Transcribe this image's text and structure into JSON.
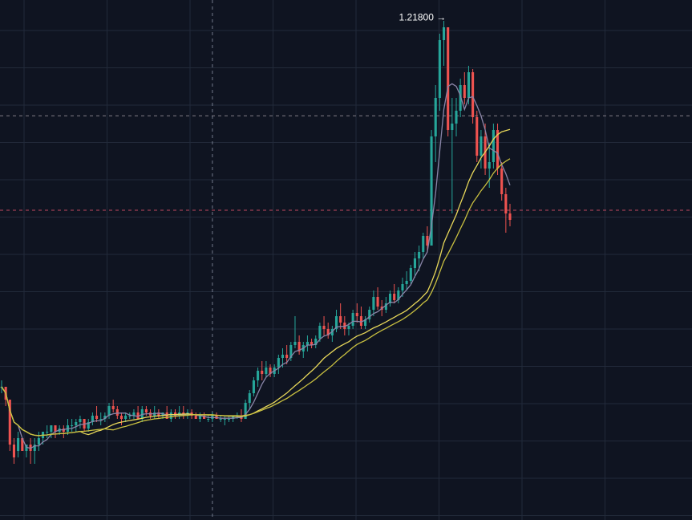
{
  "colors": {
    "background": "#0f1421",
    "grid": "#222a3a",
    "up": "#26a69a",
    "down": "#ef5350",
    "ma_fast": "#8a85a8",
    "ma_slow_1": "#e8d85a",
    "ma_slow_2": "#c9c040",
    "crosshair": "#8b93a5",
    "price_line_grey": "#b0a8b0",
    "price_line_red": "#e0506a"
  },
  "annotations": {
    "high_label": "1.21800 →"
  },
  "chart_data": {
    "type": "candlestick",
    "grid": true,
    "ylim": [
      0.46,
      1.235
    ],
    "high": 1.218,
    "reference_lines": [
      1.072,
      0.925
    ],
    "crosshair_candle_index": 51,
    "candles": [
      [
        0.65,
        0.66,
        0.64,
        0.65
      ],
      [
        0.65,
        0.65,
        0.62,
        0.63
      ],
      [
        0.63,
        0.63,
        0.55,
        0.56
      ],
      [
        0.56,
        0.57,
        0.53,
        0.54
      ],
      [
        0.55,
        0.58,
        0.54,
        0.57
      ],
      [
        0.57,
        0.57,
        0.55,
        0.55
      ],
      [
        0.55,
        0.56,
        0.54,
        0.56
      ],
      [
        0.56,
        0.57,
        0.53,
        0.55
      ],
      [
        0.55,
        0.57,
        0.53,
        0.56
      ],
      [
        0.56,
        0.58,
        0.55,
        0.57
      ],
      [
        0.57,
        0.58,
        0.56,
        0.58
      ],
      [
        0.58,
        0.59,
        0.57,
        0.58
      ],
      [
        0.58,
        0.59,
        0.57,
        0.59
      ],
      [
        0.59,
        0.59,
        0.57,
        0.58
      ],
      [
        0.58,
        0.59,
        0.575,
        0.585
      ],
      [
        0.585,
        0.59,
        0.57,
        0.58
      ],
      [
        0.58,
        0.6,
        0.575,
        0.59
      ],
      [
        0.59,
        0.6,
        0.58,
        0.59
      ],
      [
        0.59,
        0.6,
        0.58,
        0.595
      ],
      [
        0.595,
        0.605,
        0.585,
        0.6
      ],
      [
        0.6,
        0.6,
        0.58,
        0.585
      ],
      [
        0.585,
        0.6,
        0.58,
        0.595
      ],
      [
        0.595,
        0.61,
        0.59,
        0.605
      ],
      [
        0.605,
        0.62,
        0.595,
        0.6
      ],
      [
        0.6,
        0.61,
        0.59,
        0.6
      ],
      [
        0.6,
        0.61,
        0.595,
        0.605
      ],
      [
        0.605,
        0.625,
        0.6,
        0.62
      ],
      [
        0.62,
        0.63,
        0.61,
        0.615
      ],
      [
        0.615,
        0.62,
        0.6,
        0.605
      ],
      [
        0.605,
        0.61,
        0.59,
        0.6
      ],
      [
        0.6,
        0.61,
        0.595,
        0.605
      ],
      [
        0.605,
        0.61,
        0.6,
        0.605
      ],
      [
        0.605,
        0.615,
        0.6,
        0.61
      ],
      [
        0.61,
        0.62,
        0.6,
        0.6
      ],
      [
        0.6,
        0.62,
        0.595,
        0.615
      ],
      [
        0.615,
        0.62,
        0.605,
        0.61
      ],
      [
        0.61,
        0.615,
        0.6,
        0.605
      ],
      [
        0.605,
        0.62,
        0.6,
        0.61
      ],
      [
        0.61,
        0.615,
        0.6,
        0.605
      ],
      [
        0.605,
        0.61,
        0.6,
        0.61
      ],
      [
        0.61,
        0.62,
        0.6,
        0.6
      ],
      [
        0.6,
        0.615,
        0.595,
        0.61
      ],
      [
        0.61,
        0.615,
        0.6,
        0.605
      ],
      [
        0.605,
        0.62,
        0.6,
        0.61
      ],
      [
        0.61,
        0.62,
        0.6,
        0.605
      ],
      [
        0.605,
        0.615,
        0.6,
        0.61
      ],
      [
        0.61,
        0.615,
        0.6,
        0.605
      ],
      [
        0.605,
        0.61,
        0.6,
        0.6
      ],
      [
        0.6,
        0.61,
        0.595,
        0.605
      ],
      [
        0.605,
        0.61,
        0.6,
        0.6
      ],
      [
        0.6,
        0.605,
        0.595,
        0.6
      ],
      [
        0.6,
        0.61,
        0.595,
        0.605
      ],
      [
        0.605,
        0.61,
        0.6,
        0.6
      ],
      [
        0.6,
        0.605,
        0.595,
        0.6
      ],
      [
        0.6,
        0.605,
        0.59,
        0.6
      ],
      [
        0.6,
        0.605,
        0.595,
        0.6
      ],
      [
        0.6,
        0.605,
        0.595,
        0.605
      ],
      [
        0.605,
        0.61,
        0.6,
        0.605
      ],
      [
        0.605,
        0.615,
        0.595,
        0.6
      ],
      [
        0.6,
        0.63,
        0.6,
        0.625
      ],
      [
        0.625,
        0.645,
        0.615,
        0.64
      ],
      [
        0.64,
        0.665,
        0.635,
        0.66
      ],
      [
        0.66,
        0.68,
        0.65,
        0.675
      ],
      [
        0.675,
        0.69,
        0.66,
        0.67
      ],
      [
        0.67,
        0.69,
        0.665,
        0.68
      ],
      [
        0.68,
        0.685,
        0.665,
        0.67
      ],
      [
        0.67,
        0.685,
        0.665,
        0.68
      ],
      [
        0.68,
        0.7,
        0.67,
        0.695
      ],
      [
        0.695,
        0.71,
        0.68,
        0.7
      ],
      [
        0.7,
        0.715,
        0.685,
        0.695
      ],
      [
        0.695,
        0.72,
        0.69,
        0.715
      ],
      [
        0.715,
        0.76,
        0.71,
        0.72
      ],
      [
        0.72,
        0.73,
        0.7,
        0.705
      ],
      [
        0.705,
        0.72,
        0.695,
        0.715
      ],
      [
        0.715,
        0.73,
        0.705,
        0.72
      ],
      [
        0.72,
        0.725,
        0.71,
        0.715
      ],
      [
        0.715,
        0.73,
        0.71,
        0.725
      ],
      [
        0.725,
        0.75,
        0.72,
        0.745
      ],
      [
        0.745,
        0.76,
        0.73,
        0.74
      ],
      [
        0.74,
        0.75,
        0.725,
        0.73
      ],
      [
        0.73,
        0.745,
        0.72,
        0.74
      ],
      [
        0.74,
        0.77,
        0.735,
        0.76
      ],
      [
        0.76,
        0.78,
        0.74,
        0.75
      ],
      [
        0.75,
        0.76,
        0.73,
        0.74
      ],
      [
        0.74,
        0.75,
        0.73,
        0.745
      ],
      [
        0.745,
        0.77,
        0.74,
        0.765
      ],
      [
        0.765,
        0.78,
        0.75,
        0.76
      ],
      [
        0.76,
        0.775,
        0.74,
        0.745
      ],
      [
        0.745,
        0.76,
        0.74,
        0.755
      ],
      [
        0.755,
        0.775,
        0.75,
        0.77
      ],
      [
        0.77,
        0.8,
        0.76,
        0.79
      ],
      [
        0.79,
        0.805,
        0.77,
        0.775
      ],
      [
        0.775,
        0.785,
        0.76,
        0.77
      ],
      [
        0.77,
        0.79,
        0.765,
        0.78
      ],
      [
        0.78,
        0.8,
        0.775,
        0.795
      ],
      [
        0.795,
        0.81,
        0.78,
        0.785
      ],
      [
        0.785,
        0.805,
        0.78,
        0.8
      ],
      [
        0.8,
        0.82,
        0.79,
        0.81
      ],
      [
        0.81,
        0.83,
        0.8,
        0.815
      ],
      [
        0.815,
        0.84,
        0.81,
        0.835
      ],
      [
        0.835,
        0.86,
        0.82,
        0.85
      ],
      [
        0.85,
        0.87,
        0.83,
        0.86
      ],
      [
        0.86,
        0.89,
        0.85,
        0.885
      ],
      [
        0.885,
        0.9,
        0.86,
        0.87
      ],
      [
        0.87,
        1.05,
        0.87,
        1.04
      ],
      [
        1.04,
        1.12,
        1.0,
        1.1
      ],
      [
        1.1,
        1.2,
        1.08,
        1.19
      ],
      [
        1.19,
        1.22,
        1.15,
        1.21
      ],
      [
        1.21,
        1.205,
        1.04,
        1.05
      ],
      [
        1.05,
        1.1,
        0.92,
        1.06
      ],
      [
        1.06,
        1.1,
        1.04,
        1.08
      ],
      [
        1.08,
        1.13,
        1.07,
        1.12
      ],
      [
        1.12,
        1.14,
        1.09,
        1.1
      ],
      [
        1.1,
        1.15,
        1.09,
        1.14
      ],
      [
        1.14,
        1.145,
        1.06,
        1.07
      ],
      [
        1.07,
        1.08,
        1.0,
        1.01
      ],
      [
        1.01,
        1.05,
        0.99,
        1.04
      ],
      [
        1.04,
        1.06,
        0.98,
        0.99
      ],
      [
        0.99,
        1.03,
        0.96,
        1.0
      ],
      [
        1.0,
        1.06,
        0.99,
        1.05
      ],
      [
        1.05,
        1.06,
        0.98,
        0.99
      ],
      [
        0.99,
        1.0,
        0.94,
        0.95
      ],
      [
        0.95,
        0.96,
        0.89,
        0.92
      ],
      [
        0.92,
        0.935,
        0.9,
        0.91
      ]
    ],
    "moving_averages": [
      {
        "period": 5,
        "color": "#8a85a8"
      },
      {
        "period": 20,
        "color": "#e8d85a"
      },
      {
        "period": 26,
        "color": "#c9c040"
      }
    ]
  }
}
